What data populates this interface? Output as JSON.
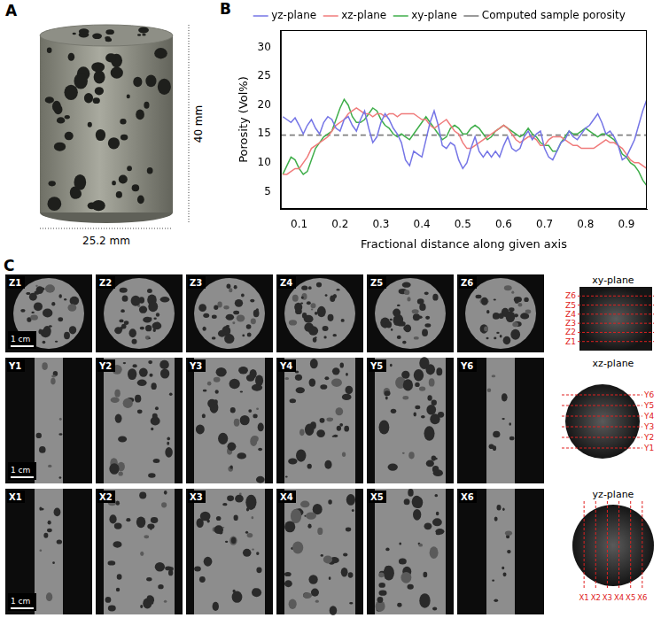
{
  "panel_a": {
    "letter": "A",
    "height_label": "40 mm",
    "width_label": "25.2 mm"
  },
  "panel_b": {
    "letter": "B"
  },
  "chart_data": {
    "type": "line",
    "x_label": "Fractional distance along given axis",
    "y_label": "Porosity (Vol%)",
    "xlim": [
      0.055,
      0.95
    ],
    "xticks": [
      0.1,
      0.2,
      0.3,
      0.4,
      0.5,
      0.6,
      0.7,
      0.8,
      0.9
    ],
    "ylim": [
      2,
      33
    ],
    "yticks": [
      5,
      10,
      15,
      20,
      25,
      30
    ],
    "grid": false,
    "legend": "top",
    "x": [
      0.06,
      0.07,
      0.08,
      0.09,
      0.1,
      0.11,
      0.12,
      0.13,
      0.14,
      0.15,
      0.16,
      0.17,
      0.18,
      0.19,
      0.2,
      0.21,
      0.22,
      0.23,
      0.24,
      0.25,
      0.26,
      0.27,
      0.28,
      0.29,
      0.3,
      0.31,
      0.32,
      0.33,
      0.34,
      0.35,
      0.36,
      0.37,
      0.38,
      0.39,
      0.4,
      0.41,
      0.42,
      0.43,
      0.44,
      0.45,
      0.46,
      0.47,
      0.48,
      0.49,
      0.5,
      0.51,
      0.52,
      0.53,
      0.54,
      0.55,
      0.56,
      0.57,
      0.58,
      0.59,
      0.6,
      0.61,
      0.62,
      0.63,
      0.64,
      0.65,
      0.66,
      0.67,
      0.68,
      0.69,
      0.7,
      0.71,
      0.72,
      0.73,
      0.74,
      0.75,
      0.76,
      0.77,
      0.78,
      0.79,
      0.8,
      0.81,
      0.82,
      0.83,
      0.84,
      0.85,
      0.86,
      0.87,
      0.88,
      0.89,
      0.9,
      0.91,
      0.92,
      0.93,
      0.94,
      0.95
    ],
    "series": [
      {
        "name": "yz-plane",
        "color": "#7575e6",
        "line_style": "solid",
        "values": [
          18,
          17.5,
          17,
          17.8,
          16.5,
          15,
          16.5,
          17.5,
          16,
          15,
          17,
          18,
          17.5,
          16,
          15.5,
          17.5,
          18,
          16.5,
          15.5,
          17.5,
          19,
          16,
          13.5,
          14.5,
          17,
          18.5,
          17.5,
          16,
          15,
          13.5,
          10.5,
          9.5,
          12,
          11.5,
          11,
          14,
          17,
          19,
          16.5,
          13,
          12.5,
          13.5,
          13,
          10.5,
          9,
          10,
          12.5,
          14.5,
          12,
          11,
          12,
          11,
          12,
          11,
          13,
          14.5,
          12.5,
          12,
          12.5,
          14.5,
          15.5,
          14,
          15,
          15.5,
          12.5,
          11,
          10.5,
          12,
          13.5,
          14,
          15.5,
          14.5,
          14,
          15,
          16,
          16.5,
          17.5,
          18.5,
          17,
          15,
          15.5,
          14.5,
          13,
          10.5,
          11,
          12.5,
          14,
          16.5,
          19,
          21
        ]
      },
      {
        "name": "xz-plane",
        "color": "#f07b7b",
        "line_style": "solid",
        "values": [
          8,
          8,
          8.5,
          9,
          9,
          10,
          11,
          12.5,
          13,
          13.5,
          14,
          14.5,
          15.5,
          16.5,
          17,
          17.5,
          18.5,
          19,
          19.5,
          19,
          18.5,
          18.5,
          18,
          18.5,
          18.5,
          18,
          18.5,
          18.5,
          18,
          18.5,
          18.5,
          18.5,
          18.5,
          18,
          17.5,
          17.5,
          16.5,
          16,
          16.5,
          17,
          17.5,
          16.5,
          15.5,
          15,
          13.5,
          12.5,
          12.5,
          13,
          13.5,
          14,
          14.5,
          15,
          15.5,
          16,
          16.5,
          16,
          15,
          14,
          13.5,
          14,
          14.5,
          14.5,
          14,
          13,
          13,
          14,
          14.5,
          14.5,
          14.5,
          14,
          13.5,
          13,
          13,
          12.5,
          12.5,
          12.5,
          12.5,
          13,
          13.5,
          14,
          13.5,
          13.5,
          13,
          12.5,
          11.5,
          10.5,
          10,
          10,
          9.5,
          9
        ]
      },
      {
        "name": "xy-plane",
        "color": "#3fae4a",
        "line_style": "solid",
        "values": [
          8,
          9.5,
          11,
          10.5,
          9,
          8,
          8.5,
          10.5,
          12.5,
          13.5,
          14.5,
          15,
          15.5,
          17.5,
          19.5,
          21,
          20,
          18,
          17,
          17,
          17.5,
          18.5,
          19.5,
          19,
          17.5,
          16.5,
          16,
          15,
          14.5,
          15,
          14.5,
          14,
          15,
          16,
          17,
          18,
          17,
          16,
          15,
          14,
          14.5,
          16,
          16.5,
          16,
          15,
          15,
          16,
          16.5,
          16,
          15,
          14,
          14.5,
          15.5,
          16,
          16.5,
          16,
          15.5,
          15,
          14.5,
          15,
          16,
          15,
          14.5,
          13.5,
          13,
          13,
          12,
          12,
          13.5,
          14.5,
          15.5,
          15,
          15,
          15.5,
          16,
          15.5,
          15,
          14.5,
          15,
          15,
          14.5,
          14,
          13,
          11.5,
          11,
          10,
          9.5,
          8.5,
          7,
          6
        ]
      },
      {
        "name": "Computed sample porosity",
        "color": "#808080",
        "line_style": "dashed",
        "x": [
          0.055,
          0.95
        ],
        "values": [
          14.8,
          14.8
        ]
      }
    ]
  },
  "panel_c": {
    "letter": "C",
    "rows": [
      {
        "slices": [
          "Z1",
          "Z2",
          "Z3",
          "Z4",
          "Z5",
          "Z6"
        ],
        "scale_bar": "1 cm",
        "plane": "xy-plane",
        "cut_labels": [
          "Z6",
          "Z5",
          "Z4",
          "Z3",
          "Z2",
          "Z1"
        ]
      },
      {
        "slices": [
          "Y1",
          "Y2",
          "Y3",
          "Y4",
          "Y5",
          "Y6"
        ],
        "scale_bar": "1 cm",
        "plane": "xz-plane",
        "cut_labels": [
          "Y6",
          "Y5",
          "Y4",
          "Y3",
          "Y2",
          "Y1"
        ]
      },
      {
        "slices": [
          "X1",
          "X2",
          "X3",
          "X4",
          "X5",
          "X6"
        ],
        "scale_bar": "1 cm",
        "plane": "yz-plane",
        "cut_labels": [
          "X1",
          "X2",
          "X3",
          "X4",
          "X5",
          "X6"
        ]
      }
    ]
  }
}
